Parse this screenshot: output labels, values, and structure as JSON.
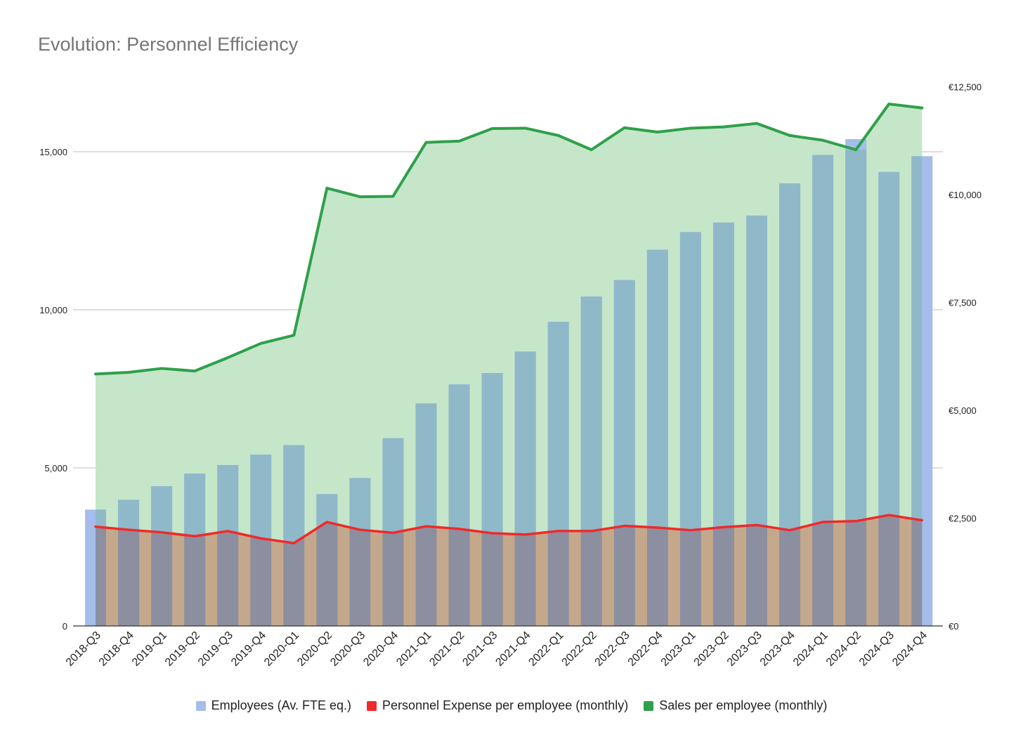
{
  "title": "Evolution: Personnel Efficiency",
  "colors": {
    "employees_bar": "#a4bdea",
    "employees_bar_overlap": "#8fb9c9",
    "sales_line": "#2ea04a",
    "sales_area": "#c5e6c9",
    "expense_line": "#f02a2a",
    "expense_area_bar": "#8c8fa0",
    "expense_area_gap": "#c4a88c",
    "gridline": "#bdbdbd",
    "axis": "#333333"
  },
  "chart_data": {
    "type": "bar",
    "categories": [
      "2018-Q3",
      "2018-Q4",
      "2019-Q1",
      "2019-Q2",
      "2019-Q3",
      "2019-Q4",
      "2020-Q1",
      "2020-Q2",
      "2020-Q3",
      "2020-Q4",
      "2021-Q1",
      "2021-Q2",
      "2021-Q3",
      "2021-Q4",
      "2022-Q1",
      "2022-Q2",
      "2022-Q3",
      "2022-Q4",
      "2023-Q1",
      "2023-Q2",
      "2023-Q3",
      "2023-Q4",
      "2024-Q1",
      "2024-Q2",
      "2024-Q3",
      "2024-Q4"
    ],
    "left_axis": {
      "ylim": [
        0,
        17000
      ],
      "ticks": [
        0,
        5000,
        10000,
        15000
      ],
      "tick_labels": [
        "0",
        "5,000",
        "10,000",
        "15,000"
      ]
    },
    "right_axis": {
      "ylim": [
        0,
        12500
      ],
      "ticks": [
        0,
        2500,
        5000,
        7500,
        10000,
        12500
      ],
      "tick_labels": [
        "€0",
        "€2,500",
        "€5,000",
        "€7,500",
        "€10,000",
        "€12,500"
      ]
    },
    "grid": true,
    "legend_position": "bottom",
    "series": [
      {
        "name": "Employees (Av. FTE eq.)",
        "type": "bar",
        "axis": "left",
        "values": [
          3680,
          3990,
          4420,
          4820,
          5090,
          5420,
          5720,
          4170,
          4680,
          5940,
          7040,
          7640,
          8000,
          8680,
          9620,
          10420,
          10940,
          11900,
          12460,
          12760,
          12980,
          14000,
          14900,
          15400,
          14360,
          14860
        ]
      },
      {
        "name": "Personnel Expense per employee (monthly)",
        "type": "line",
        "axis": "right",
        "values": [
          2300,
          2230,
          2170,
          2080,
          2200,
          2030,
          1920,
          2410,
          2230,
          2160,
          2310,
          2250,
          2150,
          2120,
          2200,
          2200,
          2320,
          2280,
          2220,
          2290,
          2340,
          2220,
          2410,
          2430,
          2570,
          2450
        ]
      },
      {
        "name": "Sales per employee (monthly)",
        "type": "area",
        "axis": "right",
        "values": [
          5840,
          5880,
          5970,
          5910,
          6220,
          6550,
          6740,
          10150,
          9950,
          9960,
          11210,
          11240,
          11530,
          11540,
          11370,
          11040,
          11550,
          11450,
          11540,
          11570,
          11650,
          11370,
          11260,
          11040,
          12100,
          12010
        ]
      }
    ]
  }
}
